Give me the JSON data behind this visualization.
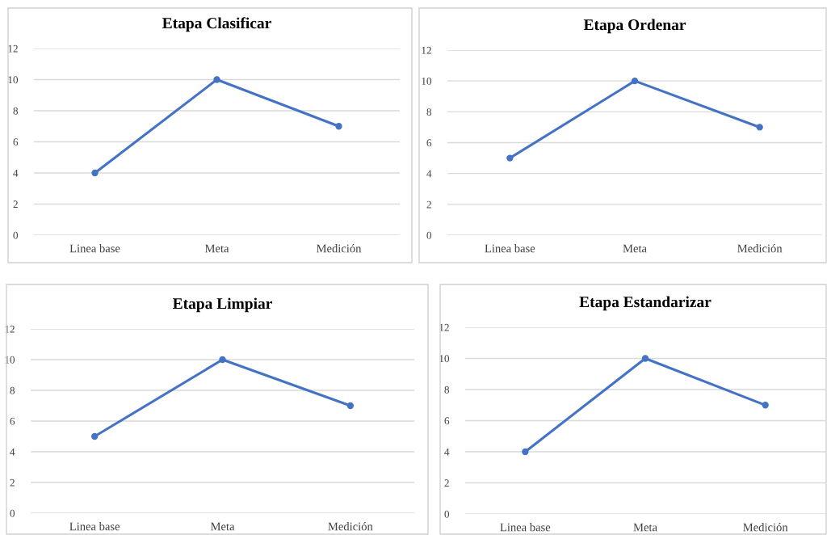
{
  "chart_data": [
    {
      "type": "line",
      "title": "Etapa Clasificar",
      "categories": [
        "Linea base",
        "Meta",
        "Medición"
      ],
      "series": [
        {
          "color": "#4472c4",
          "values": [
            4,
            10,
            7
          ]
        }
      ],
      "ylim": [
        0,
        12
      ],
      "yticks": [
        0,
        2,
        4,
        6,
        8,
        10,
        12
      ],
      "grid": "y",
      "marker": "circle",
      "line_style": "solid"
    },
    {
      "type": "line",
      "title": "Etapa Ordenar",
      "categories": [
        "Linea base",
        "Meta",
        "Medición"
      ],
      "series": [
        {
          "color": "#4472c4",
          "values": [
            5,
            10,
            7
          ]
        }
      ],
      "ylim": [
        0,
        12
      ],
      "yticks": [
        0,
        2,
        4,
        6,
        8,
        10,
        12
      ],
      "grid": "y",
      "marker": "circle",
      "line_style": "solid"
    },
    {
      "type": "line",
      "title": "Etapa Limpiar",
      "categories": [
        "Linea base",
        "Meta",
        "Medición"
      ],
      "series": [
        {
          "color": "#4472c4",
          "values": [
            5,
            10,
            7
          ]
        }
      ],
      "ylim": [
        0,
        12
      ],
      "yticks": [
        0,
        2,
        4,
        6,
        8,
        10,
        12
      ],
      "grid": "y",
      "marker": "circle",
      "line_style": "solid"
    },
    {
      "type": "line",
      "title": "Etapa Estandarizar",
      "categories": [
        "Linea base",
        "Meta",
        "Medición"
      ],
      "series": [
        {
          "color": "#4472c4",
          "values": [
            4,
            10,
            7
          ]
        }
      ],
      "ylim": [
        0,
        12
      ],
      "yticks": [
        0,
        2,
        4,
        6,
        8,
        10,
        12
      ],
      "grid": "y",
      "marker": "circle",
      "line_style": "solid"
    }
  ]
}
